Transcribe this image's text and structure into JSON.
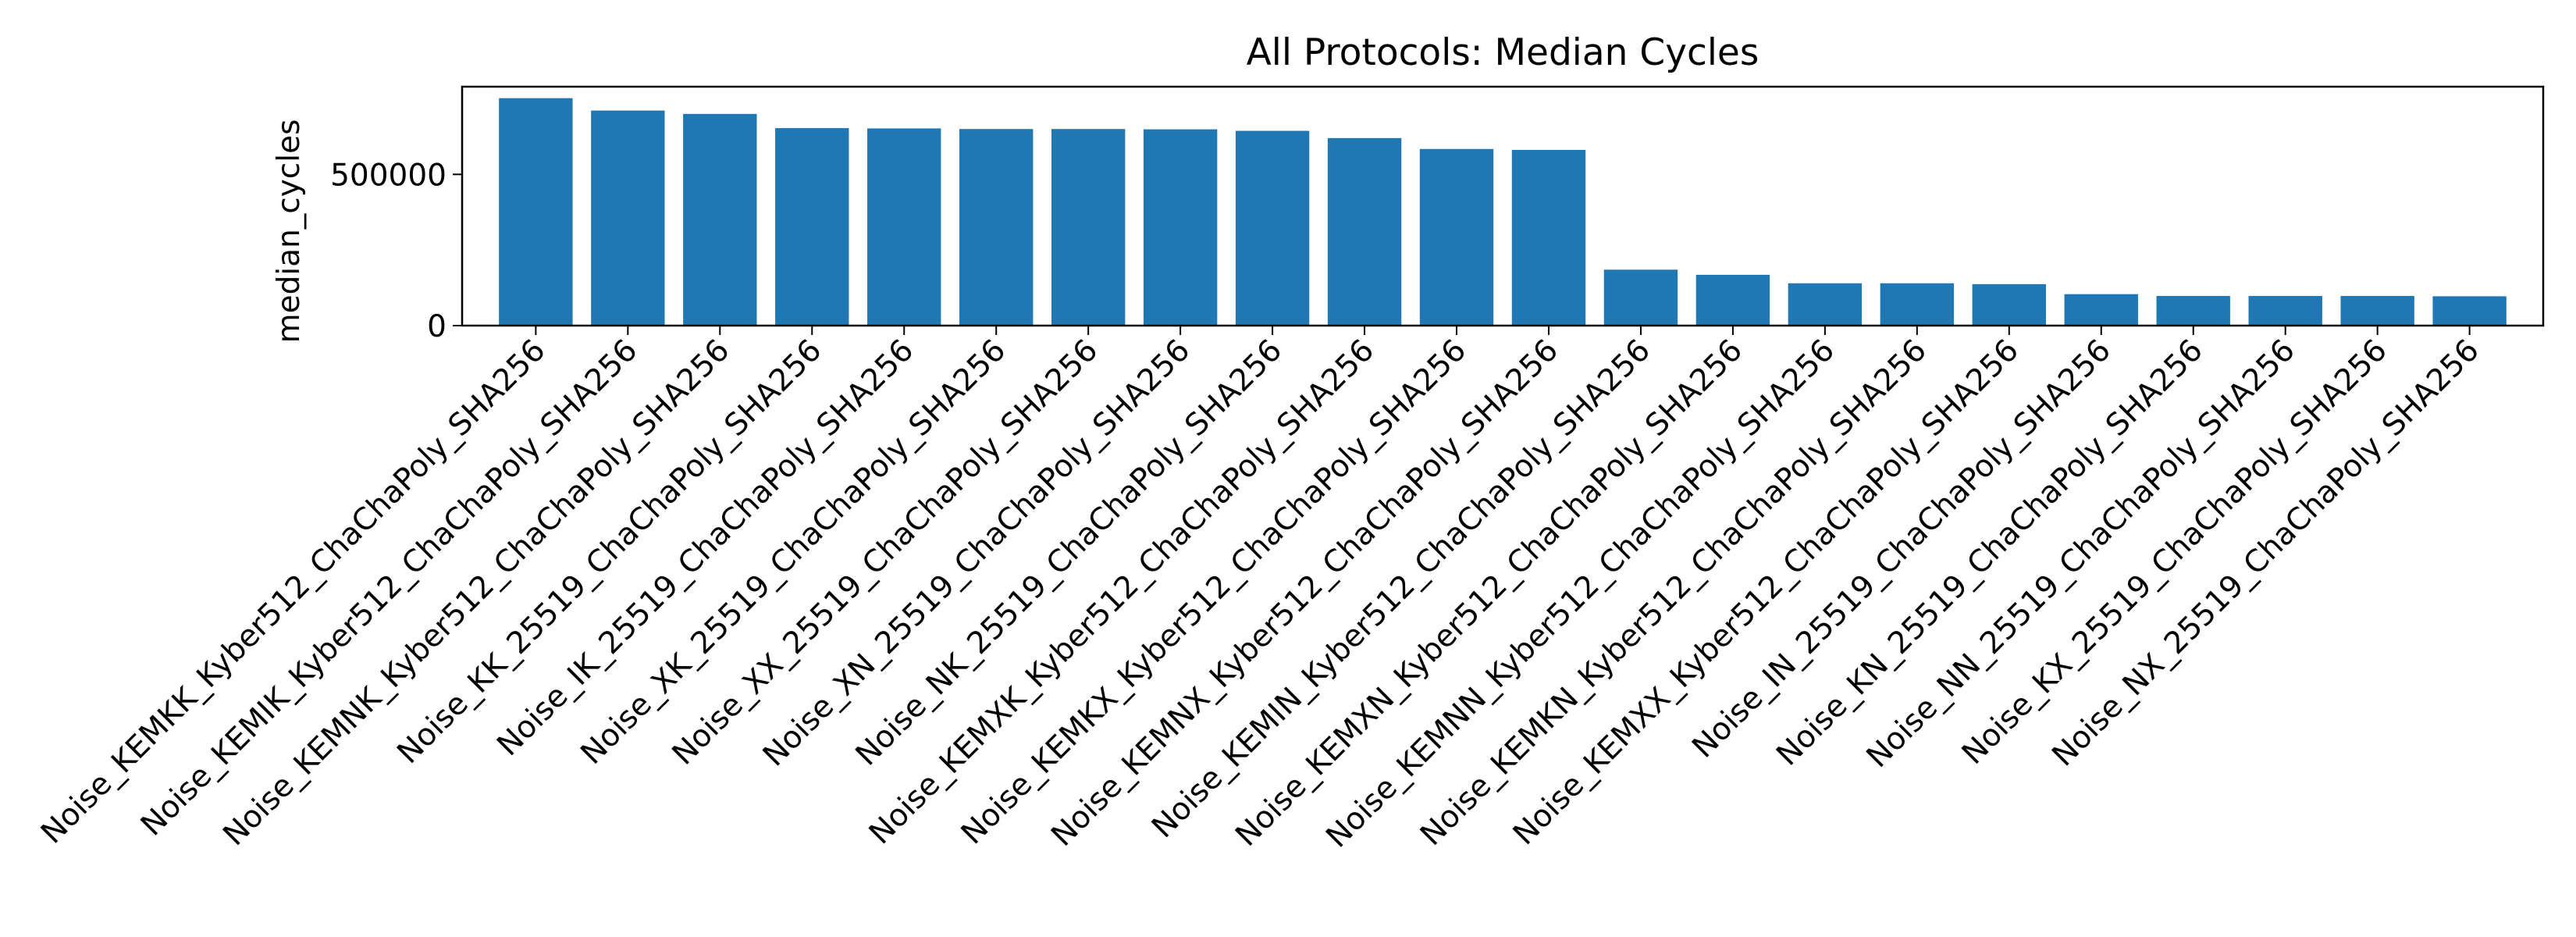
{
  "chart_data": {
    "type": "bar",
    "title": "All Protocols: Median Cycles",
    "xlabel": "",
    "ylabel": "median_cycles",
    "ylim": [
      0,
      790000
    ],
    "yticks": [
      0,
      500000
    ],
    "grid": false,
    "bar_color": "#1f77b4",
    "categories": [
      "Noise_KEMKK_Kyber512_ChaChaPoly_SHA256",
      "Noise_KEMIK_Kyber512_ChaChaPoly_SHA256",
      "Noise_KEMNK_Kyber512_ChaChaPoly_SHA256",
      "Noise_KK_25519_ChaChaPoly_SHA256",
      "Noise_IK_25519_ChaChaPoly_SHA256",
      "Noise_XK_25519_ChaChaPoly_SHA256",
      "Noise_XX_25519_ChaChaPoly_SHA256",
      "Noise_XN_25519_ChaChaPoly_SHA256",
      "Noise_NK_25519_ChaChaPoly_SHA256",
      "Noise_KEMXK_Kyber512_ChaChaPoly_SHA256",
      "Noise_KEMKX_Kyber512_ChaChaPoly_SHA256",
      "Noise_KEMNX_Kyber512_ChaChaPoly_SHA256",
      "Noise_KEMIN_Kyber512_ChaChaPoly_SHA256",
      "Noise_KEMXN_Kyber512_ChaChaPoly_SHA256",
      "Noise_KEMNN_Kyber512_ChaChaPoly_SHA256",
      "Noise_KEMKN_Kyber512_ChaChaPoly_SHA256",
      "Noise_KEMXX_Kyber512_ChaChaPoly_SHA256",
      "Noise_IN_25519_ChaChaPoly_SHA256",
      "Noise_KN_25519_ChaChaPoly_SHA256",
      "Noise_NN_25519_ChaChaPoly_SHA256",
      "Noise_KX_25519_ChaChaPoly_SHA256",
      "Noise_NX_25519_ChaChaPoly_SHA256"
    ],
    "values": [
      752000,
      711000,
      700000,
      653000,
      652000,
      650000,
      650000,
      649000,
      644000,
      620000,
      584000,
      581000,
      185000,
      168000,
      140000,
      140000,
      137000,
      104000,
      98000,
      98000,
      98000,
      97000
    ]
  }
}
